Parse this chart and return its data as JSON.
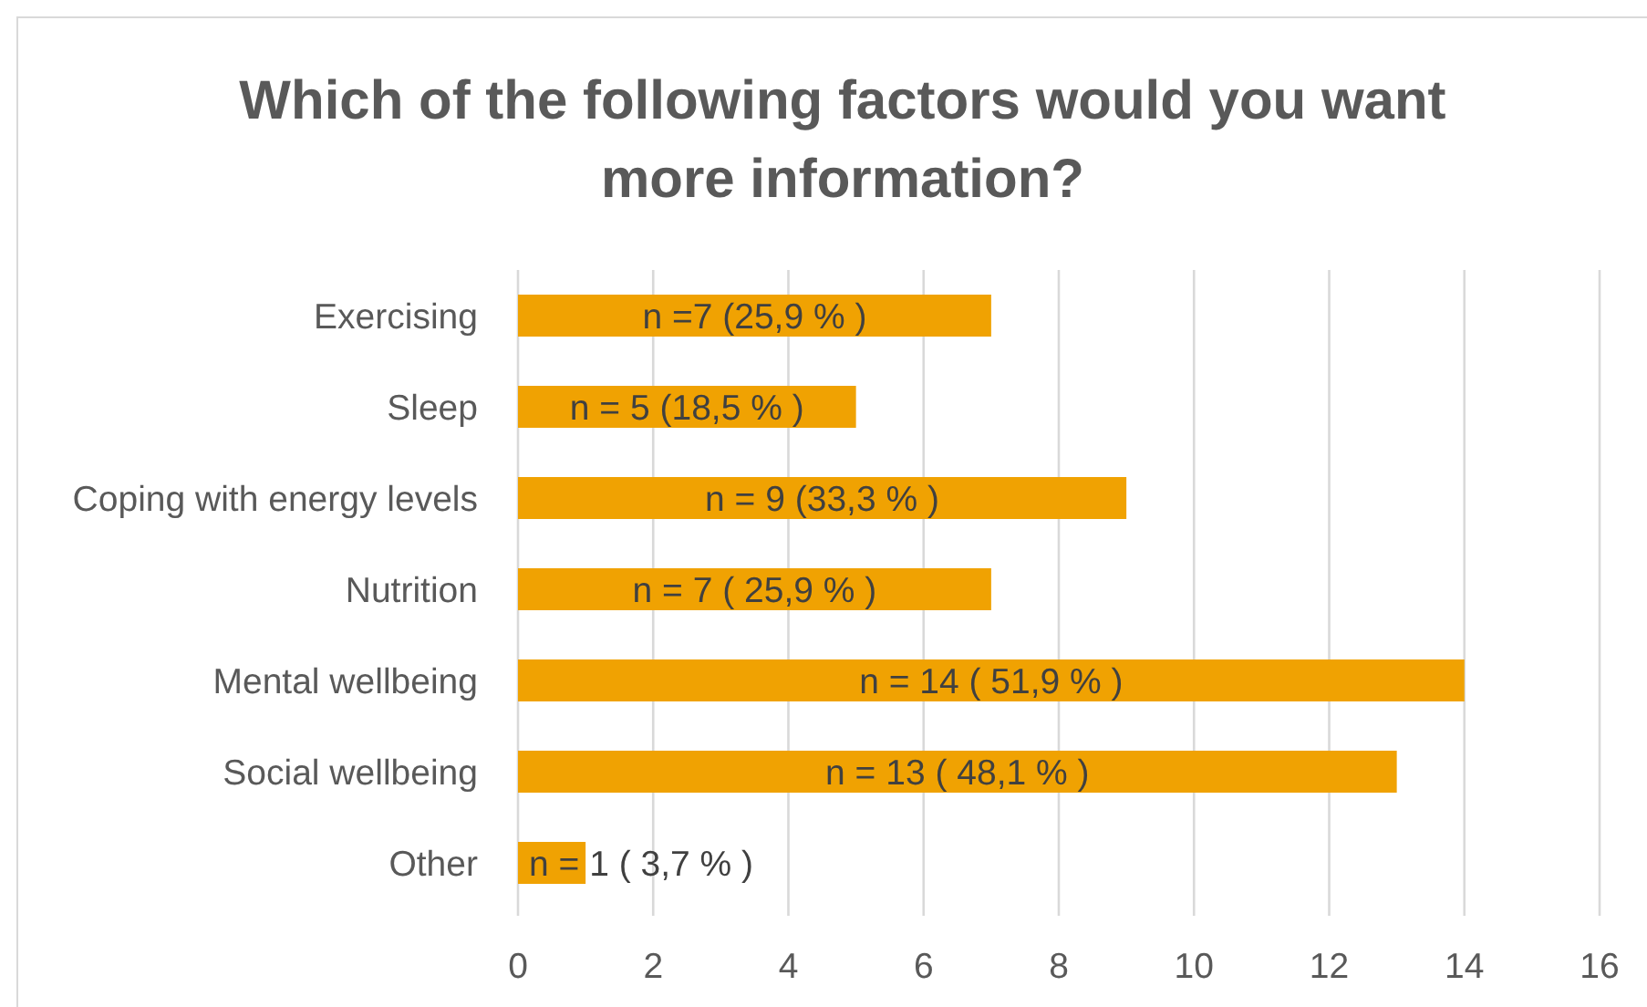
{
  "chart_data": {
    "type": "bar",
    "orientation": "horizontal",
    "title": "Which of the following factors would you want more information?",
    "categories": [
      "Exercising",
      "Sleep",
      "Coping with energy levels",
      "Nutrition",
      "Mental wellbeing",
      "Social wellbeing",
      "Other"
    ],
    "values": [
      7,
      5,
      9,
      7,
      14,
      13,
      1
    ],
    "color": "#f0a202",
    "value_labels": [
      "n =7 (25,9 % )",
      "n = 5 (18,5 % )",
      "n = 9 (33,3 % )",
      "n = 7 ( 25,9 % )",
      "n = 14 ( 51,9 % )",
      "n = 13 ( 48,1 % )",
      "n = 1 ( 3,7 % )"
    ],
    "xlim": [
      0,
      16
    ],
    "xticks": [
      0,
      2,
      4,
      6,
      8,
      10,
      12,
      14,
      16
    ],
    "grid": "x"
  }
}
